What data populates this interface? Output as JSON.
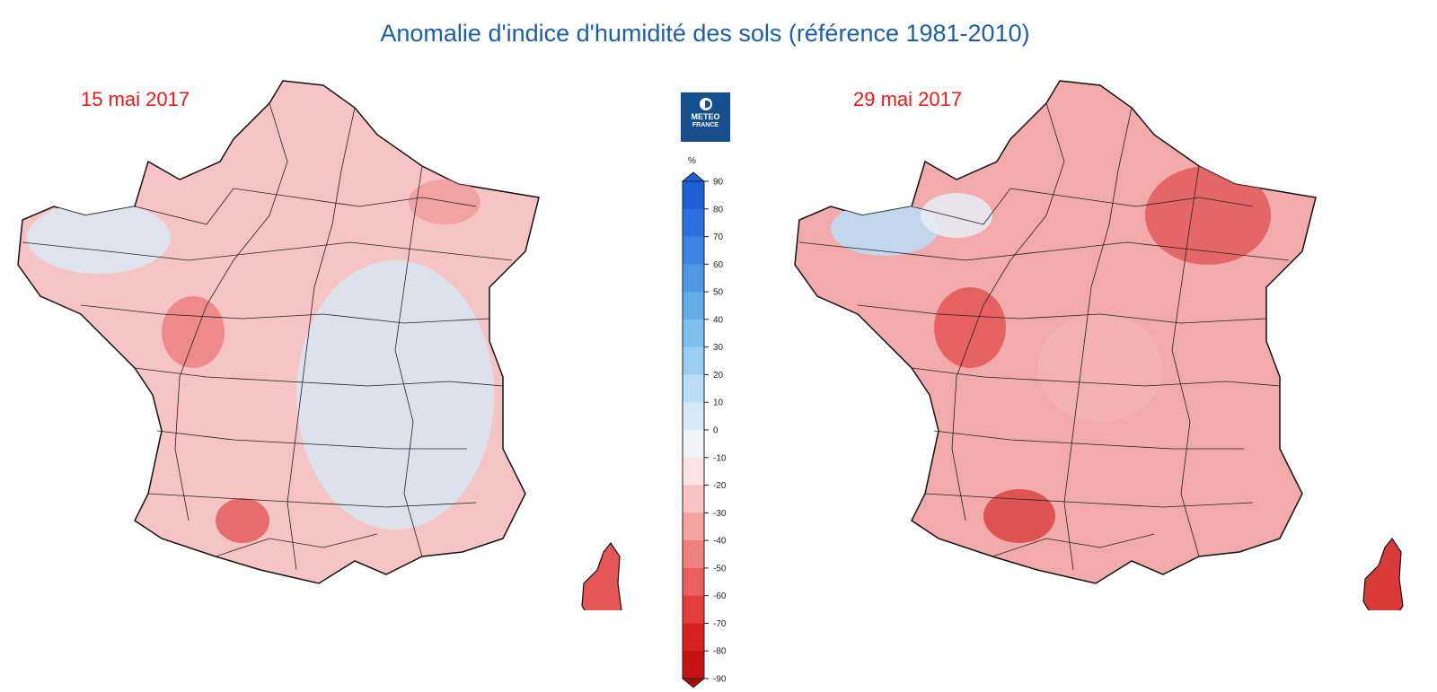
{
  "title": "Anomalie d'indice d'humidité des sols (référence 1981-2010)",
  "maps": [
    {
      "date": "15 mai 2017",
      "dominant_anomaly": "-10 à -20",
      "dominant_color": "#f6b9b9",
      "notable_regions": [
        {
          "area": "Bretagne / Normandie ouest",
          "anomaly": "0 à +20",
          "color": "#d7e8f6"
        },
        {
          "area": "Centre-Est",
          "anomaly": "0 à +20",
          "color": "#d5e9f7"
        },
        {
          "area": "Poitou-Charentes",
          "anomaly": "-30 à -40",
          "color": "#ee8585"
        },
        {
          "area": "Midi-Pyrénées",
          "anomaly": "-40 à -50",
          "color": "#e86161"
        },
        {
          "area": "Corse",
          "anomaly": "-40 à -50",
          "color": "#e65757"
        }
      ]
    },
    {
      "date": "29 mai 2017",
      "dominant_anomaly": "-20 à -30",
      "dominant_color": "#f3a7a7",
      "notable_regions": [
        {
          "area": "Bretagne nord",
          "anomaly": "0 à +30",
          "color": "#bcdcf3"
        },
        {
          "area": "Nord-Est / Lorraine",
          "anomaly": "-40 à -50",
          "color": "#e45f5f"
        },
        {
          "area": "Poitou-Charentes",
          "anomaly": "-40 à -50",
          "color": "#e55a5a"
        },
        {
          "area": "Midi-Pyrénées",
          "anomaly": "-40 à -60",
          "color": "#de4646"
        },
        {
          "area": "Corse",
          "anomaly": "-50 à -60",
          "color": "#d93838"
        }
      ]
    }
  ],
  "logo": {
    "line1": "METEO",
    "line2": "FRANCE"
  },
  "legend": {
    "unit": "%",
    "ticks": [
      "90",
      "80",
      "70",
      "60",
      "50",
      "40",
      "30",
      "20",
      "10",
      "0",
      "-10",
      "-20",
      "-30",
      "-40",
      "-50",
      "-60",
      "-70",
      "-80",
      "-90"
    ],
    "colors_top_to_bottom": [
      "#1f5fd6",
      "#2a70e0",
      "#3c85e4",
      "#4e98e6",
      "#63acea",
      "#7dbfee",
      "#9bcff2",
      "#b9ddf5",
      "#d7eaf8",
      "#eef5fb",
      "#fde3e3",
      "#f9c3c3",
      "#f5a3a3",
      "#f08080",
      "#ea5f5f",
      "#e43d3d",
      "#d82020",
      "#c41313",
      "#a90b0b"
    ]
  }
}
